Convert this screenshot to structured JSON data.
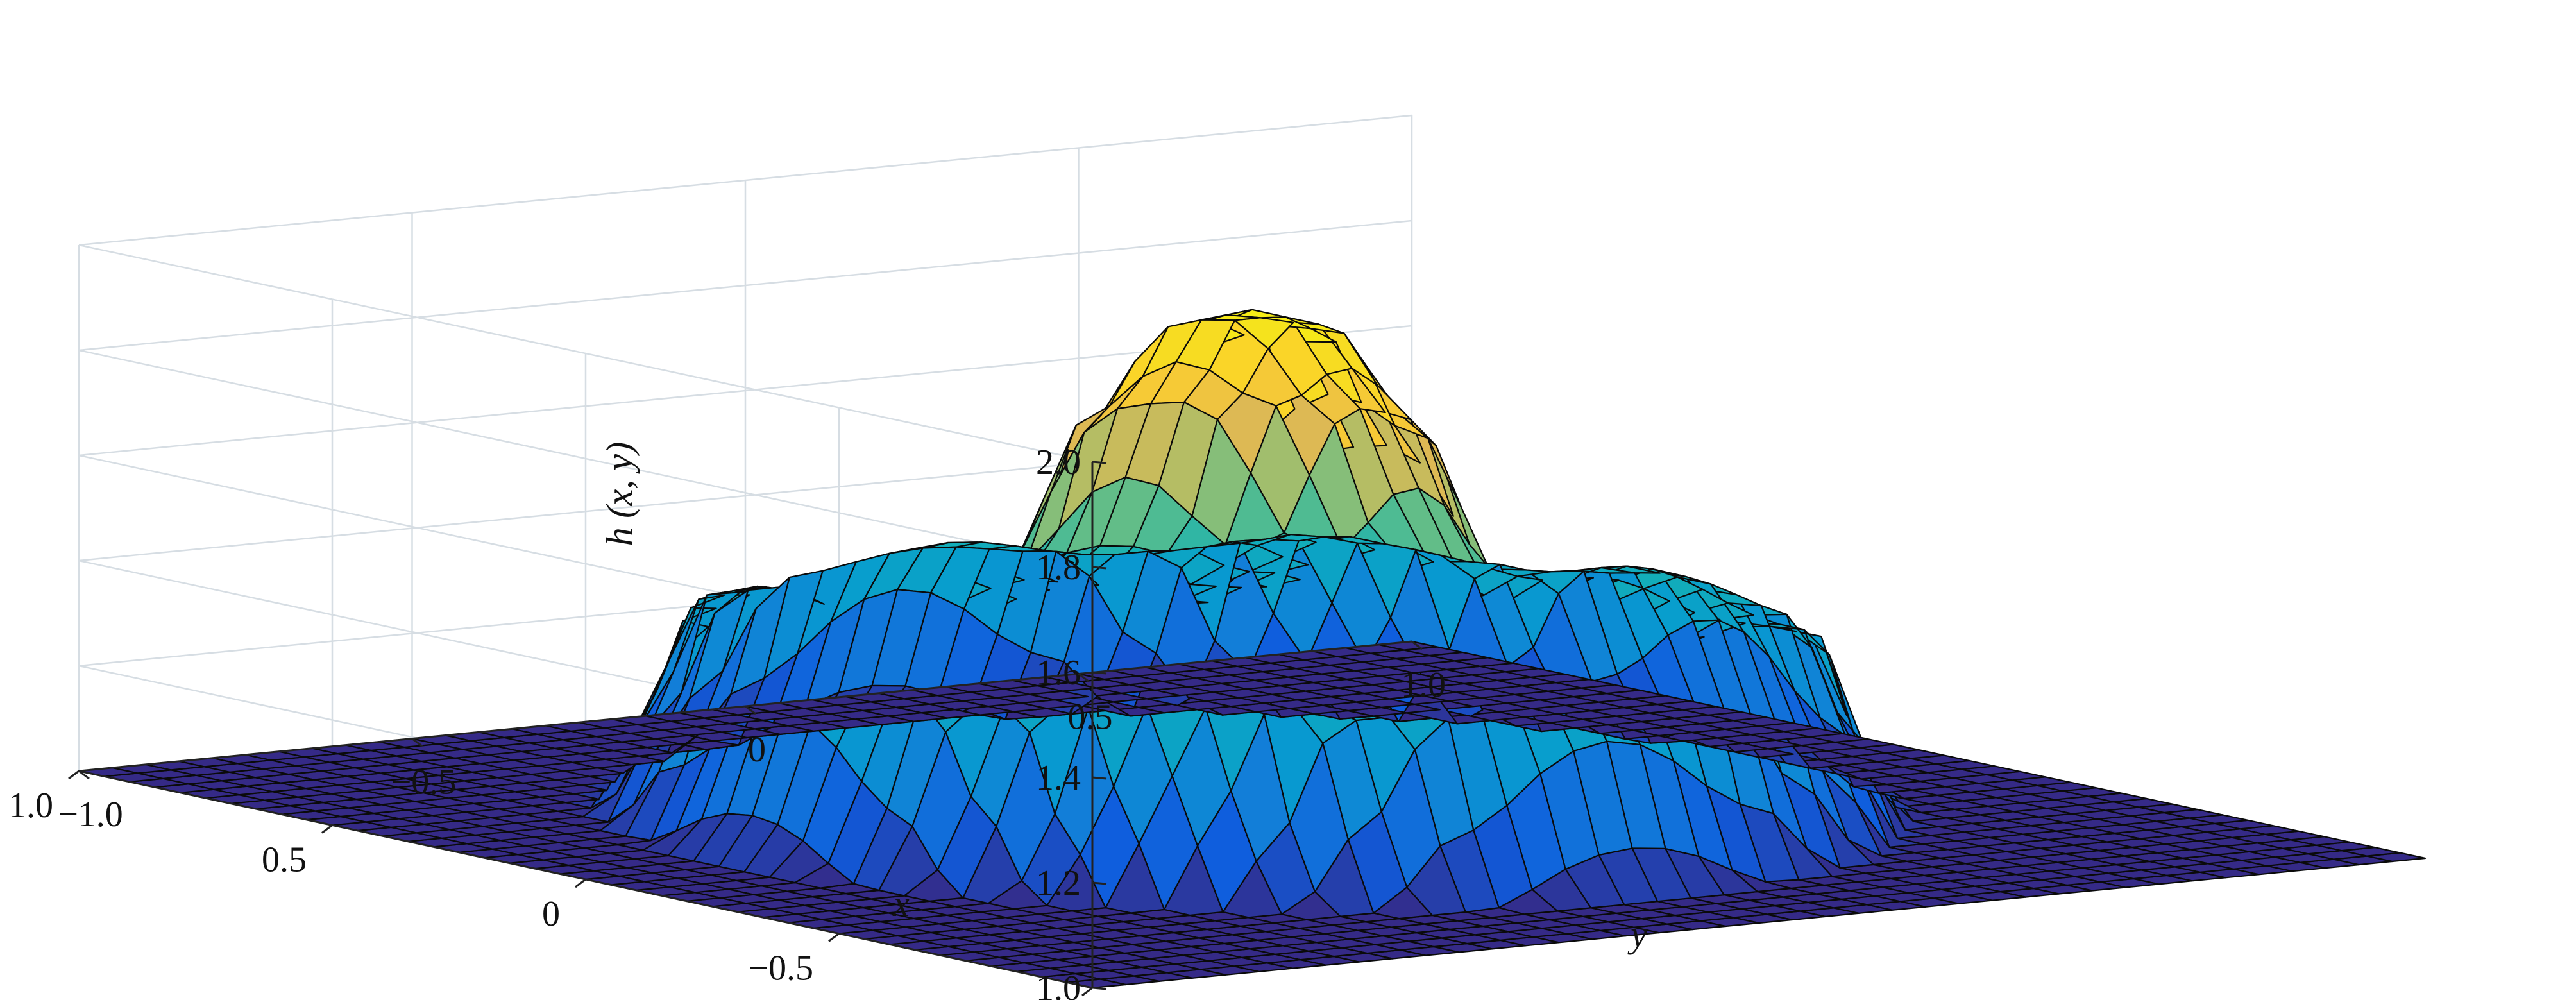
{
  "chart_data": {
    "type": "surface",
    "title": "",
    "xlabel": "x",
    "ylabel": "y",
    "zlabel": "h (x, y)",
    "xlim": [
      -1.0,
      1.0
    ],
    "ylim": [
      -1.0,
      1.0
    ],
    "zlim": [
      1.0,
      2.0
    ],
    "x_ticks": [
      "−1.0",
      "−0.5",
      "0",
      "0.5",
      "1.0"
    ],
    "y_ticks": [
      "−1.0",
      "−0.5",
      "0",
      "0.5",
      "1.0"
    ],
    "z_ticks": [
      "1.0",
      "1.2",
      "1.4",
      "1.6",
      "1.8",
      "2.0"
    ],
    "grid": true,
    "colormap": "parula",
    "grid_resolution": 41,
    "surface_profile": {
      "description": "radially symmetric in r = sqrt(x^2+y^2); 1.0 outside the disk",
      "r": [
        0.0,
        0.1,
        0.2,
        0.3,
        0.4,
        0.5,
        0.6,
        0.68,
        0.73,
        0.78,
        1.41
      ],
      "h": [
        1.96,
        1.92,
        1.74,
        1.44,
        1.32,
        1.33,
        1.37,
        1.35,
        1.14,
        1.0,
        1.0
      ]
    },
    "angular_ripple": {
      "amplitude": 0.03,
      "frequency": 8
    }
  }
}
